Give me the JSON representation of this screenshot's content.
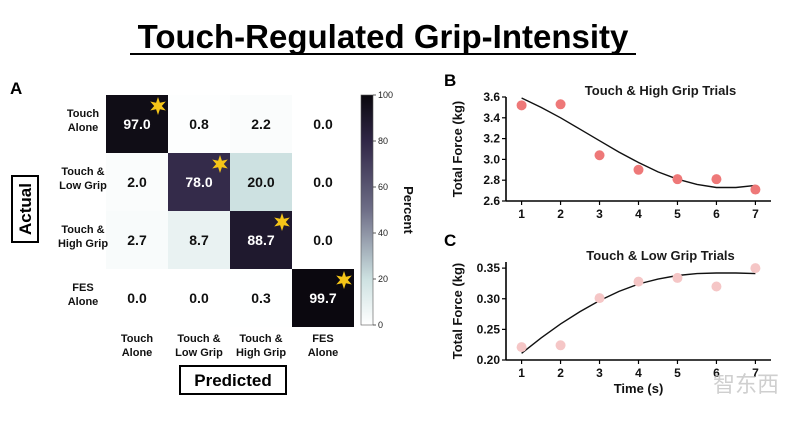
{
  "figure_title": "Touch-Regulated Grip-Intensity",
  "panel_a": {
    "label": "A",
    "actual_label": "Actual",
    "predicted_label": "Predicted",
    "colorbar_label": "Percent",
    "watermark": "智东西"
  },
  "chart_data": [
    {
      "type": "heatmap",
      "title": "",
      "row_labels": [
        [
          "Touch",
          "Alone"
        ],
        [
          "Touch &",
          "Low Grip"
        ],
        [
          "Touch &",
          "High Grip"
        ],
        [
          "FES",
          "Alone"
        ]
      ],
      "col_labels": [
        [
          "Touch",
          "Alone"
        ],
        [
          "Touch &",
          "Low Grip"
        ],
        [
          "Touch &",
          "High Grip"
        ],
        [
          "FES",
          "Alone"
        ]
      ],
      "values": [
        [
          97.0,
          0.8,
          2.2,
          0.0
        ],
        [
          2.0,
          78.0,
          20.0,
          0.0
        ],
        [
          2.7,
          8.7,
          88.7,
          0.0
        ],
        [
          0.0,
          0.0,
          0.3,
          99.7
        ]
      ],
      "display": [
        [
          "97.0",
          "0.8",
          "2.2",
          "0.0"
        ],
        [
          "2.0",
          "78.0",
          "20.0",
          "0.0"
        ],
        [
          "2.7",
          "8.7",
          "88.7",
          "0.0"
        ],
        [
          "0.0",
          "0.0",
          "0.3",
          "99.7"
        ]
      ],
      "starred_cells": [
        [
          0,
          0
        ],
        [
          1,
          1
        ],
        [
          2,
          2
        ],
        [
          3,
          3
        ]
      ],
      "colorbar": {
        "label": "Percent",
        "range": [
          0,
          100
        ],
        "ticks": [
          0,
          20,
          40,
          60,
          80,
          100
        ]
      },
      "xlabel": "Predicted",
      "ylabel": "Actual"
    },
    {
      "type": "scatter",
      "panel": "B",
      "title": "Touch & High Grip Trials",
      "xlabel": "",
      "ylabel": "Total Force (kg)",
      "x": [
        1,
        2,
        3,
        4,
        5,
        6,
        7
      ],
      "y": [
        3.52,
        3.53,
        3.04,
        2.9,
        2.81,
        2.81,
        2.71
      ],
      "fit_line": {
        "x": [
          1,
          1.5,
          2,
          2.5,
          3,
          3.5,
          4,
          4.5,
          5,
          5.5,
          6,
          6.5,
          7
        ],
        "y": [
          3.59,
          3.5,
          3.4,
          3.29,
          3.18,
          3.07,
          2.97,
          2.88,
          2.81,
          2.76,
          2.73,
          2.73,
          2.75
        ]
      },
      "xlim": [
        0.6,
        7.4
      ],
      "ylim": [
        2.6,
        3.6
      ],
      "xticks": [
        1,
        2,
        3,
        4,
        5,
        6,
        7
      ],
      "yticks": [
        2.6,
        2.8,
        3.0,
        3.2,
        3.4,
        3.6
      ],
      "ytick_labels": [
        "2.6",
        "2.8",
        "3.0",
        "3.2",
        "3.4",
        "3.6"
      ],
      "point_color": "#ee7878"
    },
    {
      "type": "scatter",
      "panel": "C",
      "title": "Touch & Low Grip Trials",
      "xlabel": "Time (s)",
      "ylabel": "Total Force (kg)",
      "x": [
        1,
        2,
        3,
        4,
        5,
        6,
        7
      ],
      "y": [
        0.221,
        0.224,
        0.301,
        0.328,
        0.334,
        0.32,
        0.35
      ],
      "fit_line": {
        "x": [
          1,
          1.5,
          2,
          2.5,
          3,
          3.5,
          4,
          4.5,
          5,
          5.5,
          6,
          6.5,
          7
        ],
        "y": [
          0.211,
          0.236,
          0.259,
          0.279,
          0.297,
          0.312,
          0.324,
          0.332,
          0.338,
          0.341,
          0.342,
          0.342,
          0.341
        ]
      },
      "xlim": [
        0.6,
        7.4
      ],
      "ylim": [
        0.2,
        0.36
      ],
      "xticks": [
        1,
        2,
        3,
        4,
        5,
        6,
        7
      ],
      "yticks": [
        0.2,
        0.25,
        0.3,
        0.35
      ],
      "ytick_labels": [
        "0.20",
        "0.25",
        "0.30",
        "0.35"
      ],
      "point_color": "#f5c6c6"
    }
  ]
}
